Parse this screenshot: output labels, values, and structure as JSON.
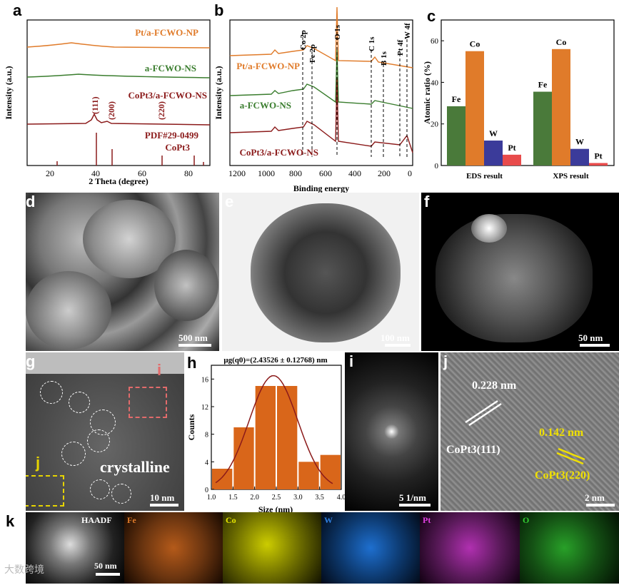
{
  "panels": {
    "a": {
      "label": "a",
      "xlabel": "2 Theta (degree)",
      "ylabel": "Intensity (a.u.)",
      "xticks": [
        "20",
        "40",
        "60",
        "80"
      ],
      "curves": [
        "Pt/a-FCWO-NP",
        "a-FCWO-NS",
        "CoPt3/a-FCWO-NS"
      ],
      "peaks": [
        "(111)",
        "(200)",
        "(220)"
      ],
      "ref": "PDF#29-0499",
      "ref2": "CoPt3",
      "colors": {
        "orange": "#e07b2a",
        "green": "#3a7d2e",
        "red": "#8b1a1a"
      }
    },
    "b": {
      "label": "b",
      "xlabel": "Binding energy",
      "ylabel": "Intensity (a.u.)",
      "xticks": [
        "1200",
        "1000",
        "800",
        "600",
        "400",
        "200",
        "0"
      ],
      "curves": [
        "Pt/a-FCWO-NP",
        "a-FCWO-NS",
        "CoPt3/a-FCWO-NS"
      ],
      "markers": [
        "Co 2p",
        "Fe 2p",
        "O 1s",
        "C 1s",
        "B 1s",
        "Pt 4f",
        "W 4f"
      ]
    },
    "c": {
      "label": "c",
      "ylabel": "Atomic ratio (%)",
      "yticks": [
        "0",
        "20",
        "40",
        "60"
      ]
    },
    "d": {
      "label": "d",
      "scale": "500 nm"
    },
    "e": {
      "label": "e",
      "scale": "100 nm"
    },
    "f": {
      "label": "f",
      "scale": "50 nm"
    },
    "g": {
      "label": "g",
      "scale": "10 nm",
      "tag_i": "i",
      "tag_j": "j",
      "text": "crystalline"
    },
    "h": {
      "label": "h",
      "title": "μg(q0)=(2.43526 ± 0.12768) nm",
      "xlabel": "Size (nm)",
      "ylabel": "Counts",
      "xticks": [
        "1.0",
        "1.5",
        "2.0",
        "2.5",
        "3.0",
        "3.5",
        "4.0"
      ],
      "yticks": [
        "0",
        "4",
        "8",
        "12",
        "16"
      ]
    },
    "i": {
      "label": "i",
      "scale": "5 1/nm"
    },
    "j": {
      "label": "j",
      "scale": "2 nm",
      "d1": "0.228 nm",
      "p1": "CoPt3(111)",
      "d2": "0.142 nm",
      "p2": "CoPt3(220)"
    },
    "k": {
      "label": "k",
      "scale": "50 nm",
      "maps": [
        "HAADF",
        "Fe",
        "Co",
        "W",
        "Pt",
        "O"
      ],
      "map_colors": [
        "#ffffff",
        "#e07b2a",
        "#e6e600",
        "#2f7fe0",
        "#e040e0",
        "#33cc33"
      ]
    }
  },
  "chart_data": [
    {
      "type": "bar",
      "panel": "c",
      "title": "",
      "ylabel": "Atomic ratio (%)",
      "ylim": [
        0,
        70
      ],
      "categories": [
        "EDS result",
        "XPS result"
      ],
      "series": [
        {
          "name": "Fe",
          "values": [
            28.5,
            35.5
          ],
          "color": "#4a7a3a"
        },
        {
          "name": "Co",
          "values": [
            55,
            56
          ],
          "color": "#e07b2a"
        },
        {
          "name": "W",
          "values": [
            12,
            8
          ],
          "color": "#3b3b9a"
        },
        {
          "name": "Pt",
          "values": [
            5.2,
            1.2
          ],
          "color": "#e84b4b"
        }
      ]
    },
    {
      "type": "bar",
      "panel": "h",
      "title": "μg(q0)=(2.43526 ± 0.12768) nm",
      "xlabel": "Size (nm)",
      "ylabel": "Counts",
      "xlim": [
        1.0,
        4.0
      ],
      "ylim": [
        0,
        18
      ],
      "bins": [
        [
          1.0,
          1.5
        ],
        [
          1.5,
          2.0
        ],
        [
          2.0,
          2.5
        ],
        [
          2.5,
          3.0
        ],
        [
          3.0,
          3.5
        ],
        [
          3.5,
          4.0
        ]
      ],
      "values": [
        3,
        9,
        15,
        15,
        4,
        5
      ],
      "color": "#d9661a",
      "fit": {
        "type": "gaussian",
        "mean": 2.435,
        "sd": 0.56,
        "peak": 16.5,
        "color": "#8b1a1a"
      }
    }
  ],
  "watermark": "大数跨境"
}
